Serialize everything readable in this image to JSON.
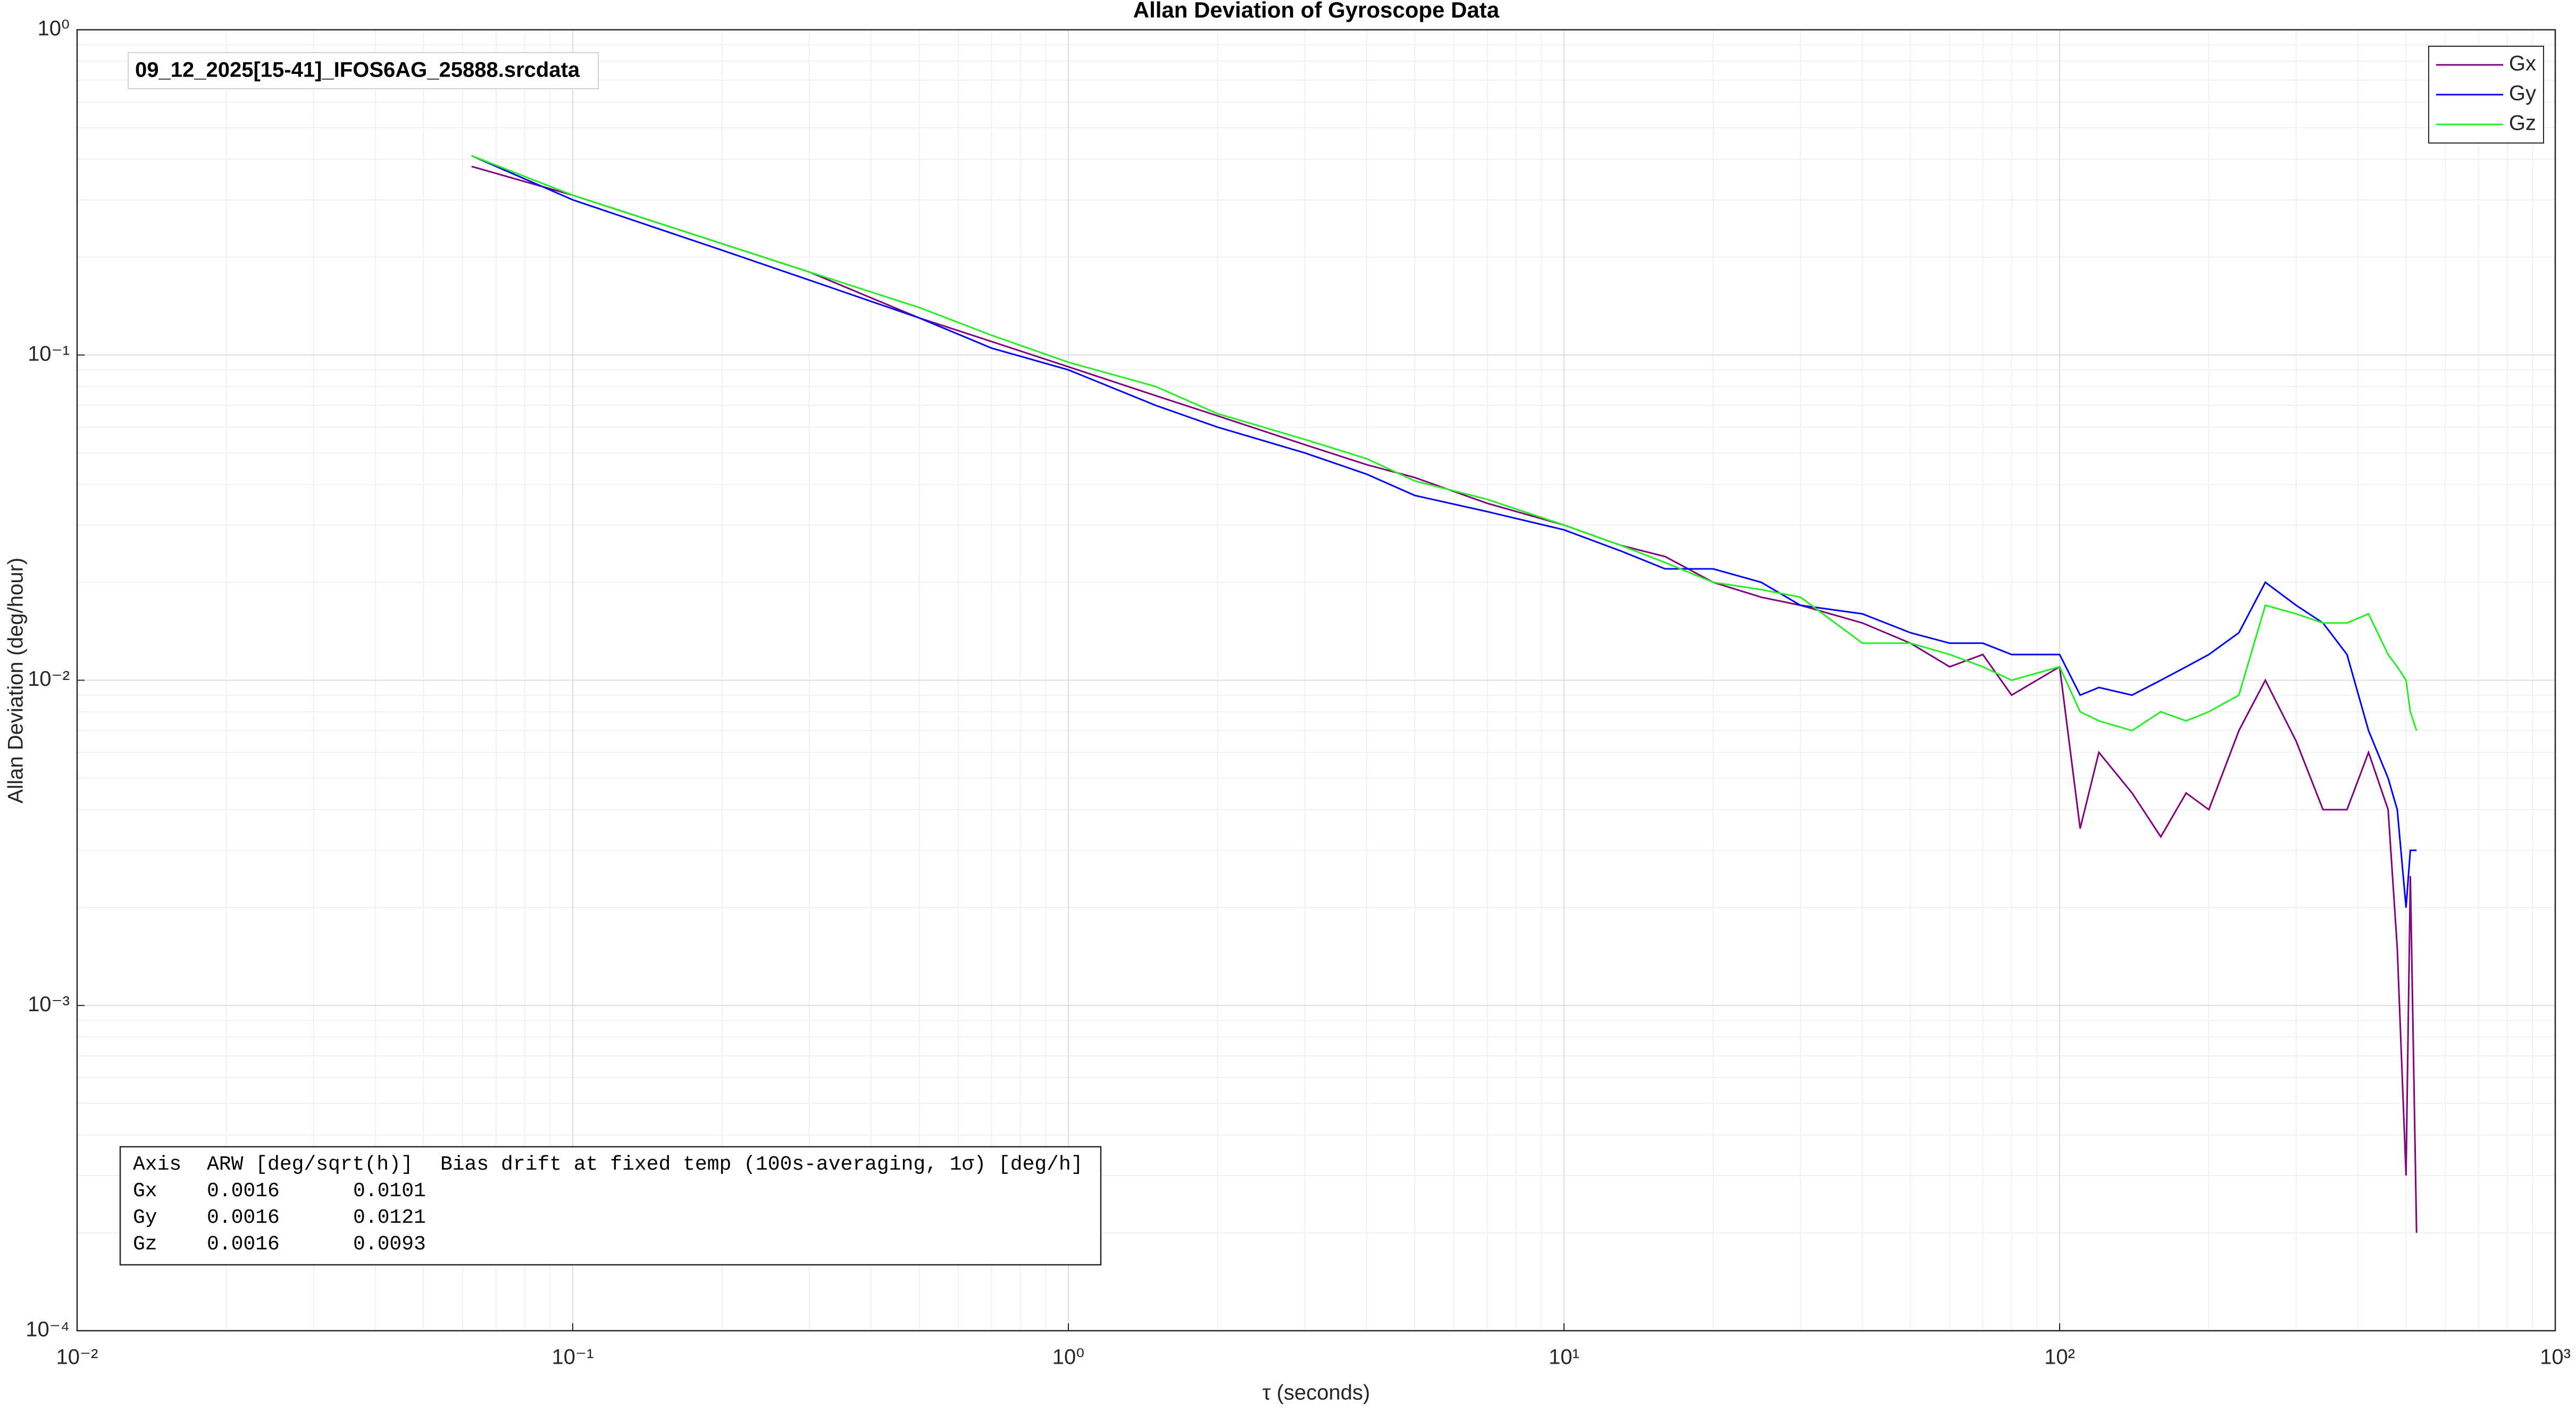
{
  "chart_data": {
    "type": "line",
    "title": "Allan Deviation of Gyroscope Data",
    "x_label": "τ (seconds)",
    "y_label": "Allan Deviation (deg/hour)",
    "file_label": "09_12_2025[15-41]_IFOS6AG_25888.srcdata",
    "log_x": true,
    "log_y": true,
    "grid": true,
    "minor_grid": true,
    "legend": "upper right",
    "xlim": [
      0.01,
      1000
    ],
    "ylim": [
      0.0001,
      1
    ],
    "xticks": [
      {
        "value": 0.01,
        "label": "10⁻²"
      },
      {
        "value": 0.1,
        "label": "10⁻¹"
      },
      {
        "value": 1,
        "label": "10⁰"
      },
      {
        "value": 10,
        "label": "10¹"
      },
      {
        "value": 100,
        "label": "10²"
      },
      {
        "value": 1000,
        "label": "10³"
      }
    ],
    "yticks": [
      {
        "value": 0.0001,
        "label": "10⁻⁴"
      },
      {
        "value": 0.001,
        "label": "10⁻³"
      },
      {
        "value": 0.01,
        "label": "10⁻²"
      },
      {
        "value": 0.1,
        "label": "10⁻¹"
      },
      {
        "value": 1,
        "label": "10⁰"
      }
    ],
    "x": [
      0.0625,
      0.1,
      0.2,
      0.3,
      0.5,
      0.7,
      1,
      1.5,
      2,
      3,
      4,
      5,
      7,
      10,
      13,
      16,
      20,
      25,
      30,
      40,
      50,
      60,
      70,
      80,
      100,
      110,
      120,
      140,
      160,
      180,
      200,
      230,
      260,
      300,
      340,
      380,
      420,
      460,
      480,
      500,
      510,
      525
    ],
    "series": [
      {
        "name": "Gx",
        "color": "#800080",
        "values": [
          0.38,
          0.31,
          0.22,
          0.18,
          0.13,
          0.11,
          0.092,
          0.075,
          0.065,
          0.053,
          0.046,
          0.042,
          0.035,
          0.03,
          0.026,
          0.024,
          0.02,
          0.018,
          0.017,
          0.015,
          0.013,
          0.011,
          0.012,
          0.009,
          0.011,
          0.0035,
          0.006,
          0.0045,
          0.0033,
          0.0045,
          0.004,
          0.007,
          0.01,
          0.0065,
          0.004,
          0.004,
          0.006,
          0.004,
          0.0015,
          0.0003,
          0.0025,
          0.0002
        ]
      },
      {
        "name": "Gy",
        "color": "#0000ff",
        "values": [
          0.41,
          0.3,
          0.21,
          0.17,
          0.13,
          0.105,
          0.09,
          0.07,
          0.06,
          0.05,
          0.043,
          0.037,
          0.033,
          0.029,
          0.025,
          0.022,
          0.022,
          0.02,
          0.017,
          0.016,
          0.014,
          0.013,
          0.013,
          0.012,
          0.012,
          0.009,
          0.0095,
          0.009,
          0.01,
          0.011,
          0.012,
          0.014,
          0.02,
          0.017,
          0.015,
          0.012,
          0.007,
          0.005,
          0.004,
          0.002,
          0.003,
          0.003
        ]
      },
      {
        "name": "Gz",
        "color": "#22ee22",
        "values": [
          0.41,
          0.31,
          0.22,
          0.18,
          0.14,
          0.115,
          0.095,
          0.08,
          0.066,
          0.055,
          0.048,
          0.041,
          0.036,
          0.03,
          0.026,
          0.023,
          0.02,
          0.019,
          0.018,
          0.013,
          0.013,
          0.012,
          0.011,
          0.01,
          0.011,
          0.008,
          0.0075,
          0.007,
          0.008,
          0.0075,
          0.008,
          0.009,
          0.017,
          0.016,
          0.015,
          0.015,
          0.016,
          0.012,
          0.011,
          0.01,
          0.008,
          0.007
        ]
      }
    ],
    "stats_table": {
      "header": [
        "Axis",
        "ARW [deg/sqrt(h)]",
        "Bias drift at fixed temp (100s-averaging, 1σ) [deg/h]"
      ],
      "rows": [
        [
          "Gx",
          0.0016,
          0.0101
        ],
        [
          "Gy",
          0.0016,
          0.0121
        ],
        [
          "Gz",
          0.0016,
          0.0093
        ]
      ]
    }
  }
}
